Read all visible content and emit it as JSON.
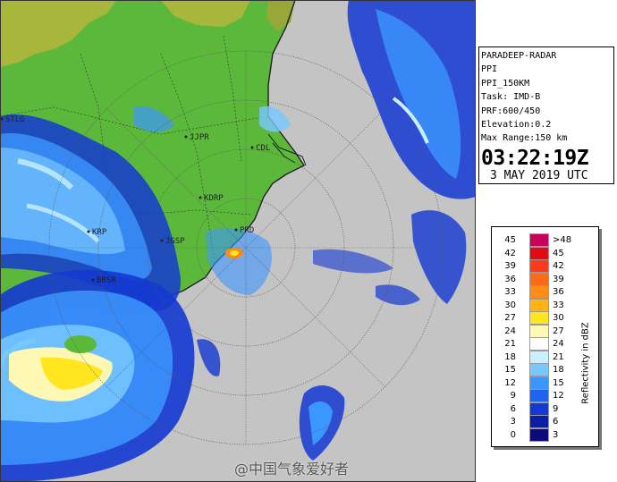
{
  "info_panel": {
    "lines": [
      "PARADEEP-RADAR",
      "PPI",
      "PPI_150KM",
      "Task: IMD-B",
      "PRF:600/450",
      "Elevation:0.2",
      "Max Range:150 km"
    ],
    "time": "03:22:19Z",
    "date": "3 MAY 2019 UTC"
  },
  "legend": {
    "title": "Reflectivity in dBZ",
    "rows": [
      {
        "lo": "45",
        "hi": ">48",
        "color": "#c8005a"
      },
      {
        "lo": "42",
        "hi": "45",
        "color": "#e30a14"
      },
      {
        "lo": "39",
        "hi": "42",
        "color": "#ff3a1a"
      },
      {
        "lo": "36",
        "hi": "39",
        "color": "#ff6a1a"
      },
      {
        "lo": "33",
        "hi": "36",
        "color": "#ff8c14"
      },
      {
        "lo": "30",
        "hi": "33",
        "color": "#ffb414"
      },
      {
        "lo": "27",
        "hi": "30",
        "color": "#ffe61e"
      },
      {
        "lo": "24",
        "hi": "27",
        "color": "#fff8b4"
      },
      {
        "lo": "21",
        "hi": "24",
        "color": "#ffffff"
      },
      {
        "lo": "18",
        "hi": "21",
        "color": "#c8f0ff"
      },
      {
        "lo": "15",
        "hi": "18",
        "color": "#78c8ff"
      },
      {
        "lo": "12",
        "hi": "15",
        "color": "#3c96ff"
      },
      {
        "lo": "9",
        "hi": "12",
        "color": "#1e64f0"
      },
      {
        "lo": "6",
        "hi": "9",
        "color": "#1438d2"
      },
      {
        "lo": "3",
        "hi": "6",
        "color": "#0a1eaa"
      },
      {
        "lo": "0",
        "hi": "3",
        "color": "#0a0a78"
      }
    ]
  },
  "map": {
    "places": [
      "JJPR",
      "CDL",
      "KDRP",
      "PRD",
      "JGSP",
      "KRP",
      "STLG",
      "BBSR"
    ],
    "colors": {
      "land": "#5cb83a",
      "sea": "#c4c4c4",
      "hills": "#a8b63c",
      "coast": "#222222"
    }
  },
  "watermark": "@中国气象爱好者"
}
